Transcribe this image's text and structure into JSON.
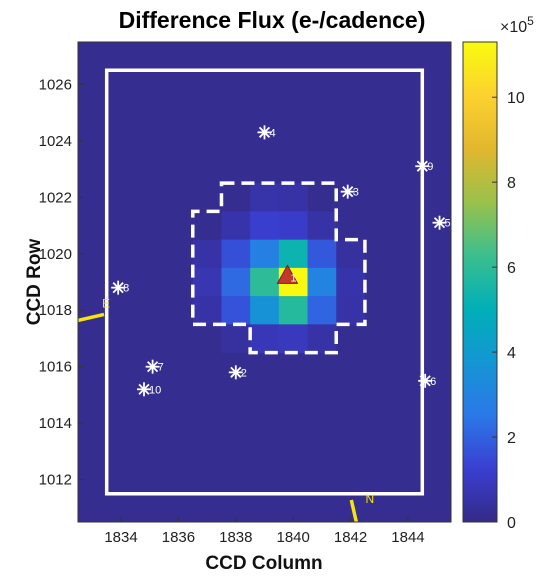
{
  "chart_data": {
    "type": "heatmap",
    "title": "Difference Flux (e-/cadence)",
    "xlabel": "CCD Column",
    "ylabel": "CCD Row",
    "xlim": [
      1832.5,
      1845.5
    ],
    "ylim": [
      1010.5,
      1027.5
    ],
    "xticks": [
      1834,
      1836,
      1838,
      1840,
      1842,
      1844
    ],
    "yticks": [
      1012,
      1014,
      1016,
      1018,
      1020,
      1022,
      1024,
      1026
    ],
    "colorbar": {
      "min": 0,
      "max": 11.3,
      "ticks": [
        0,
        2,
        4,
        6,
        8,
        10
      ],
      "exponent_label": "×10",
      "exponent": "5",
      "colormap": "parula",
      "colormap_stops": [
        "#352a87",
        "#3a3fd2",
        "#2b78e8",
        "#1496d3",
        "#00afb8",
        "#3bbf8d",
        "#9ac14b",
        "#e2b72e",
        "#fcd22f",
        "#f9fb0e"
      ]
    },
    "background_flux": 0.15,
    "pixels": [
      {
        "col": 1839,
        "row": 1022,
        "v": 0.55
      },
      {
        "col": 1840,
        "row": 1022,
        "v": 0.5
      },
      {
        "col": 1838,
        "row": 1021,
        "v": 0.6
      },
      {
        "col": 1839,
        "row": 1021,
        "v": 1.2
      },
      {
        "col": 1840,
        "row": 1021,
        "v": 1.1
      },
      {
        "col": 1841,
        "row": 1021,
        "v": 0.5
      },
      {
        "col": 1837,
        "row": 1020,
        "v": 0.5
      },
      {
        "col": 1838,
        "row": 1020,
        "v": 1.6
      },
      {
        "col": 1839,
        "row": 1020,
        "v": 2.8
      },
      {
        "col": 1840,
        "row": 1020,
        "v": 5.3
      },
      {
        "col": 1841,
        "row": 1020,
        "v": 1.8
      },
      {
        "col": 1842,
        "row": 1020,
        "v": 0.4
      },
      {
        "col": 1837,
        "row": 1019,
        "v": 0.7
      },
      {
        "col": 1838,
        "row": 1019,
        "v": 2.2
      },
      {
        "col": 1839,
        "row": 1019,
        "v": 6.0
      },
      {
        "col": 1840,
        "row": 1019,
        "v": 11.2
      },
      {
        "col": 1841,
        "row": 1019,
        "v": 3.0
      },
      {
        "col": 1842,
        "row": 1019,
        "v": 0.6
      },
      {
        "col": 1837,
        "row": 1018,
        "v": 0.5
      },
      {
        "col": 1838,
        "row": 1018,
        "v": 1.7
      },
      {
        "col": 1839,
        "row": 1018,
        "v": 3.6
      },
      {
        "col": 1840,
        "row": 1018,
        "v": 5.8
      },
      {
        "col": 1841,
        "row": 1018,
        "v": 2.1
      },
      {
        "col": 1842,
        "row": 1018,
        "v": 0.5
      },
      {
        "col": 1838,
        "row": 1017,
        "v": 0.4
      },
      {
        "col": 1839,
        "row": 1017,
        "v": 0.8
      },
      {
        "col": 1840,
        "row": 1017,
        "v": 0.9
      },
      {
        "col": 1841,
        "row": 1017,
        "v": 0.5
      }
    ],
    "aperture_outer": {
      "x0": 1833.5,
      "x1": 1844.5,
      "y0": 1011.5,
      "y1": 1026.5
    },
    "optimal_aperture": [
      [
        1837.5,
        1022.5
      ],
      [
        1841.5,
        1022.5
      ],
      [
        1841.5,
        1020.5
      ],
      [
        1842.5,
        1020.5
      ],
      [
        1842.5,
        1017.5
      ],
      [
        1841.5,
        1017.5
      ],
      [
        1841.5,
        1016.5
      ],
      [
        1838.5,
        1016.5
      ],
      [
        1838.5,
        1017.5
      ],
      [
        1836.5,
        1017.5
      ],
      [
        1836.5,
        1021.5
      ],
      [
        1837.5,
        1021.5
      ]
    ],
    "stars": [
      {
        "label": "4",
        "x": 1839.0,
        "y": 1024.3
      },
      {
        "label": "9",
        "x": 1844.5,
        "y": 1023.1
      },
      {
        "label": "3",
        "x": 1841.9,
        "y": 1022.2
      },
      {
        "label": "5",
        "x": 1845.1,
        "y": 1021.1
      },
      {
        "label": "8",
        "x": 1833.9,
        "y": 1018.8
      },
      {
        "label": "7",
        "x": 1835.1,
        "y": 1016.0
      },
      {
        "label": "2",
        "x": 1838.0,
        "y": 1015.8
      },
      {
        "label": "6",
        "x": 1844.6,
        "y": 1015.5
      },
      {
        "label": "10",
        "x": 1834.8,
        "y": 1015.2
      }
    ],
    "target_marker": {
      "label": "1",
      "x": 1839.8,
      "y": 1019.2,
      "color": "#c0392b"
    },
    "compass": [
      {
        "label": "E",
        "side": "left"
      },
      {
        "label": "N",
        "side": "bottom"
      }
    ],
    "compass_color": "#f5e50a",
    "aperture_color": "#ffffff"
  }
}
